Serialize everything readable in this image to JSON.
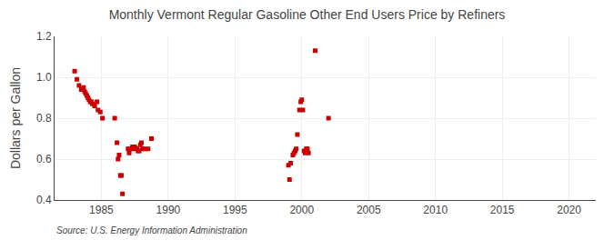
{
  "chart_data": {
    "type": "scatter",
    "title": "Monthly Vermont Regular Gasoline Other End Users Price by Refiners",
    "ylabel": "Dollars per Gallon",
    "annotations": [
      "Source: U.S. Energy Information Administration"
    ],
    "color": "#cc0000",
    "marker": "square",
    "grid": true,
    "xlim": [
      1981.5,
      2022
    ],
    "ylim": [
      0.4,
      1.2
    ],
    "xticks": [
      1985,
      1990,
      1995,
      2000,
      2005,
      2010,
      2015,
      2020
    ],
    "yticks": [
      0.4,
      0.6,
      0.8,
      {
        "value": 1.0,
        "label": "1.0"
      },
      1.2
    ],
    "x": [
      1983.0,
      1983.17,
      1983.33,
      1983.5,
      1983.58,
      1983.67,
      1983.75,
      1983.83,
      1983.92,
      1984.0,
      1984.08,
      1984.17,
      1984.25,
      1984.33,
      1984.5,
      1984.67,
      1984.75,
      1984.92,
      1985.08,
      1986.0,
      1986.17,
      1986.25,
      1986.33,
      1986.42,
      1986.5,
      1986.58,
      1987.0,
      1987.08,
      1987.17,
      1987.25,
      1987.33,
      1987.42,
      1987.5,
      1987.58,
      1987.67,
      1987.75,
      1987.83,
      1987.92,
      1988.0,
      1988.08,
      1988.25,
      1988.5,
      1988.75,
      1999.0,
      1999.08,
      1999.17,
      1999.33,
      1999.42,
      1999.5,
      1999.58,
      1999.67,
      1999.83,
      1999.92,
      2000.0,
      2000.08,
      2000.17,
      2000.25,
      2000.33,
      2000.42,
      2000.5,
      2001.0,
      2002.0
    ],
    "values": [
      1.03,
      0.99,
      0.96,
      0.94,
      0.94,
      0.95,
      0.93,
      0.92,
      0.91,
      0.9,
      0.89,
      0.88,
      0.88,
      0.87,
      0.86,
      0.88,
      0.84,
      0.83,
      0.8,
      0.8,
      0.68,
      0.6,
      0.62,
      0.52,
      0.52,
      0.43,
      0.65,
      0.63,
      0.65,
      0.65,
      0.66,
      0.66,
      0.66,
      0.65,
      0.65,
      0.64,
      0.64,
      0.67,
      0.68,
      0.65,
      0.65,
      0.65,
      0.7,
      0.57,
      0.5,
      0.58,
      0.62,
      0.63,
      0.64,
      0.65,
      0.72,
      0.84,
      0.88,
      0.89,
      0.84,
      0.64,
      0.63,
      0.65,
      0.65,
      0.63,
      1.13,
      0.8
    ]
  }
}
